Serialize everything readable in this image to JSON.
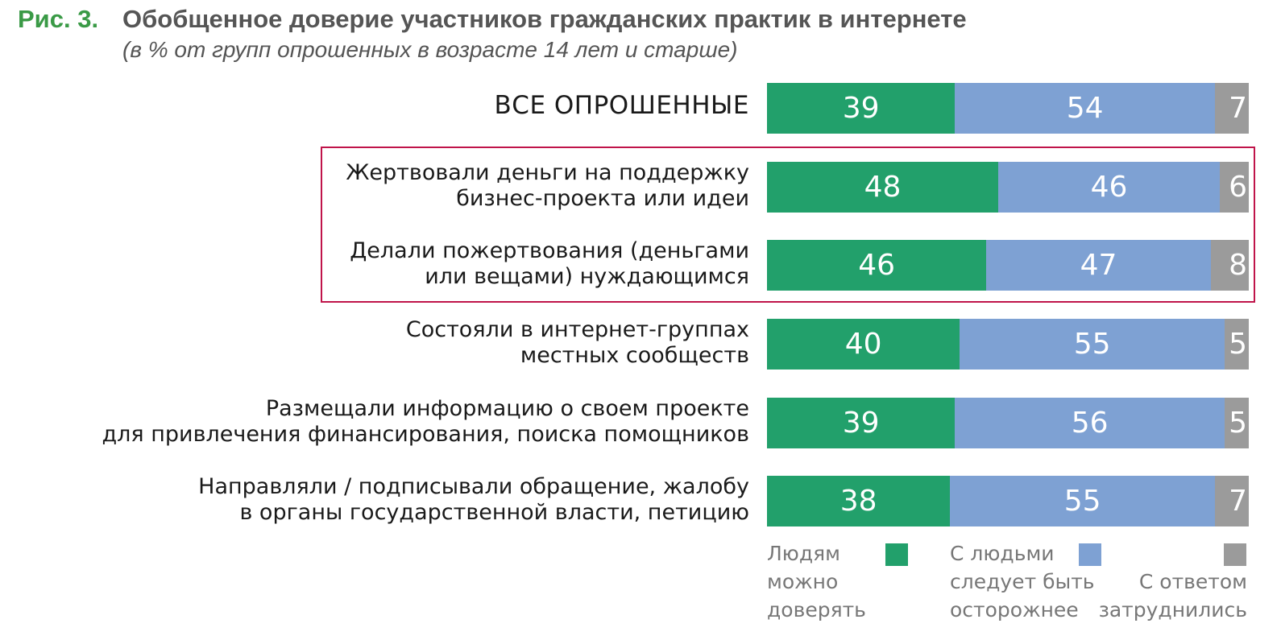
{
  "figure": {
    "label": "Рис. 3.",
    "title": "Обобщенное доверие участников гражданских практик в интернете",
    "subtitle": "(в % от групп опрошенных в возрасте 14 лет и старше)"
  },
  "colors": {
    "trust": "#22a06b",
    "careful": "#7ea1d3",
    "hard": "#9b9b9b",
    "highlight": "#c0144a"
  },
  "legend": {
    "trust": [
      "Людям",
      "можно",
      "доверять"
    ],
    "careful": [
      "С людьми",
      "следует быть",
      "осторожнее"
    ],
    "hard": [
      "С ответом",
      "затруднились"
    ]
  },
  "chart_data": {
    "type": "bar",
    "orientation": "horizontal",
    "stacked": true,
    "unit": "%",
    "categories": [
      "ВСЕ ОПРОШЕННЫЕ",
      "Жертвовали деньги на поддержку бизнес-проекта или идеи",
      "Делали пожертвования (деньгами или вещами) нуждающимся",
      "Состояли в интернет-группах местных сообществ",
      "Размещали информацию о своем проекте для привлечения финансирования, поиска помощников",
      "Направляли / подписывали обращение, жалобу в органы государственной власти, петицию"
    ],
    "category_lines": [
      [
        "ВСЕ ОПРОШЕННЫЕ"
      ],
      [
        "Жертвовали деньги на поддержку",
        "бизнес-проекта или идеи"
      ],
      [
        "Делали пожертвования (деньгами",
        "или вещами) нуждающимся"
      ],
      [
        "Состояли в интернет-группах",
        "местных сообществ"
      ],
      [
        "Размещали информацию о своем проекте",
        "для привлечения финансирования, поиска помощников"
      ],
      [
        "Направляли / подписывали обращение, жалобу",
        "в органы государственной власти, петицию"
      ]
    ],
    "series": [
      {
        "name": "Людям можно доверять",
        "values": [
          39,
          48,
          46,
          40,
          39,
          38
        ]
      },
      {
        "name": "С людьми следует быть осторожнее",
        "values": [
          54,
          46,
          47,
          55,
          56,
          55
        ]
      },
      {
        "name": "С ответом затруднились",
        "values": [
          7,
          6,
          8,
          5,
          5,
          7
        ]
      }
    ],
    "highlighted_rows": [
      1,
      2
    ],
    "legend_position": "bottom-right",
    "grid": false
  }
}
